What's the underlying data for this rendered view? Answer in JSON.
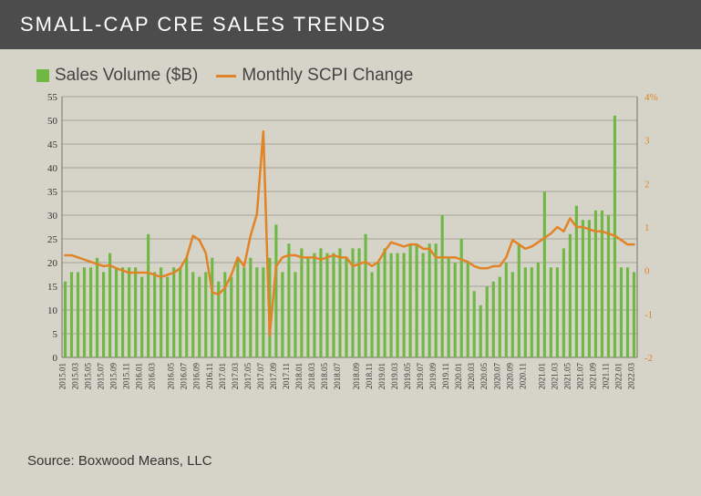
{
  "header": {
    "title": "SMALL-CAP CRE SALES TRENDS"
  },
  "legend": {
    "series1": "Sales Volume ($B)",
    "series2": "Monthly SCPI Change"
  },
  "source": "Source: Boxwood Means, LLC",
  "chart": {
    "type": "combo-bar-line",
    "background_color": "#d6d4c8",
    "plot_background": "#d6d4c8",
    "grid_color": "#77736a",
    "grid_width": 0.5,
    "axis_font_size": 11,
    "axis_font_color": "#333333",
    "tick_label_font_size": 9,
    "left_axis": {
      "min": 0,
      "max": 55,
      "tick_step": 5,
      "color": "#333333"
    },
    "right_axis": {
      "min": -2,
      "max": 4,
      "tick_step": 1,
      "suffix_top": "%",
      "color": "#e08427"
    },
    "categories": [
      "2015.01",
      "2015.03",
      "2015.05",
      "2015.07",
      "2015.09",
      "2015.11",
      "2016.01",
      "2016.03",
      "2016.05",
      "2016.07",
      "2016.09",
      "2016.11",
      "2017.01",
      "2017.03",
      "2017.05",
      "2017.07",
      "2017.09",
      "2017.11",
      "2018.01",
      "2018.03",
      "2018.05",
      "2018.07",
      "2018.09",
      "2018.11",
      "2019.01",
      "2019.03",
      "2019.05",
      "2019.07",
      "2019.09",
      "2019.11",
      "2020.01",
      "2020.03",
      "2020.05",
      "2020.07",
      "2020.09",
      "2020.11",
      "2021.01",
      "2021.03",
      "2021.05",
      "2021.07",
      "2021.09",
      "2021.11",
      "2022.01",
      "2022.03"
    ],
    "bars": {
      "label": "Sales Volume ($B)",
      "color": "#6fb844",
      "width_ratio": 0.45,
      "values": [
        16,
        18,
        18,
        19,
        19,
        21,
        18,
        22,
        19,
        19,
        19,
        19,
        17,
        26,
        18,
        19,
        17,
        19,
        19,
        21,
        18,
        17,
        18,
        21,
        16,
        18,
        17,
        21,
        19,
        21,
        19,
        19,
        21,
        28,
        18,
        24,
        18,
        23,
        21,
        22,
        23,
        22,
        22,
        23,
        21,
        23,
        23,
        26,
        18,
        20,
        23,
        22,
        22,
        22,
        24,
        24,
        22,
        24,
        24,
        30,
        21,
        20,
        25,
        20,
        14,
        11,
        15,
        16,
        17,
        20,
        18,
        24,
        19,
        19,
        20,
        35,
        19,
        19,
        23,
        26,
        32,
        29,
        29,
        31,
        31,
        30,
        51,
        19,
        19,
        18
      ]
    },
    "line": {
      "label": "Monthly SCPI Change",
      "color": "#e08427",
      "width": 2.5,
      "values": [
        0.35,
        0.35,
        0.3,
        0.25,
        0.2,
        0.15,
        0.1,
        0.12,
        0.05,
        0.0,
        -0.05,
        -0.05,
        -0.05,
        -0.05,
        -0.1,
        -0.15,
        -0.1,
        -0.05,
        0.05,
        0.3,
        0.8,
        0.7,
        0.4,
        -0.5,
        -0.55,
        -0.4,
        -0.1,
        0.3,
        0.1,
        0.8,
        1.3,
        3.2,
        -1.5,
        0.1,
        0.3,
        0.35,
        0.35,
        0.3,
        0.3,
        0.3,
        0.25,
        0.3,
        0.35,
        0.3,
        0.3,
        0.1,
        0.15,
        0.2,
        0.1,
        0.2,
        0.45,
        0.65,
        0.6,
        0.55,
        0.6,
        0.6,
        0.5,
        0.5,
        0.3,
        0.3,
        0.3,
        0.3,
        0.25,
        0.2,
        0.1,
        0.05,
        0.05,
        0.1,
        0.1,
        0.3,
        0.7,
        0.6,
        0.5,
        0.55,
        0.65,
        0.75,
        0.85,
        1.0,
        0.9,
        1.2,
        1.0,
        1.0,
        0.95,
        0.9,
        0.9,
        0.85,
        0.8,
        0.7,
        0.6,
        0.6
      ]
    }
  }
}
